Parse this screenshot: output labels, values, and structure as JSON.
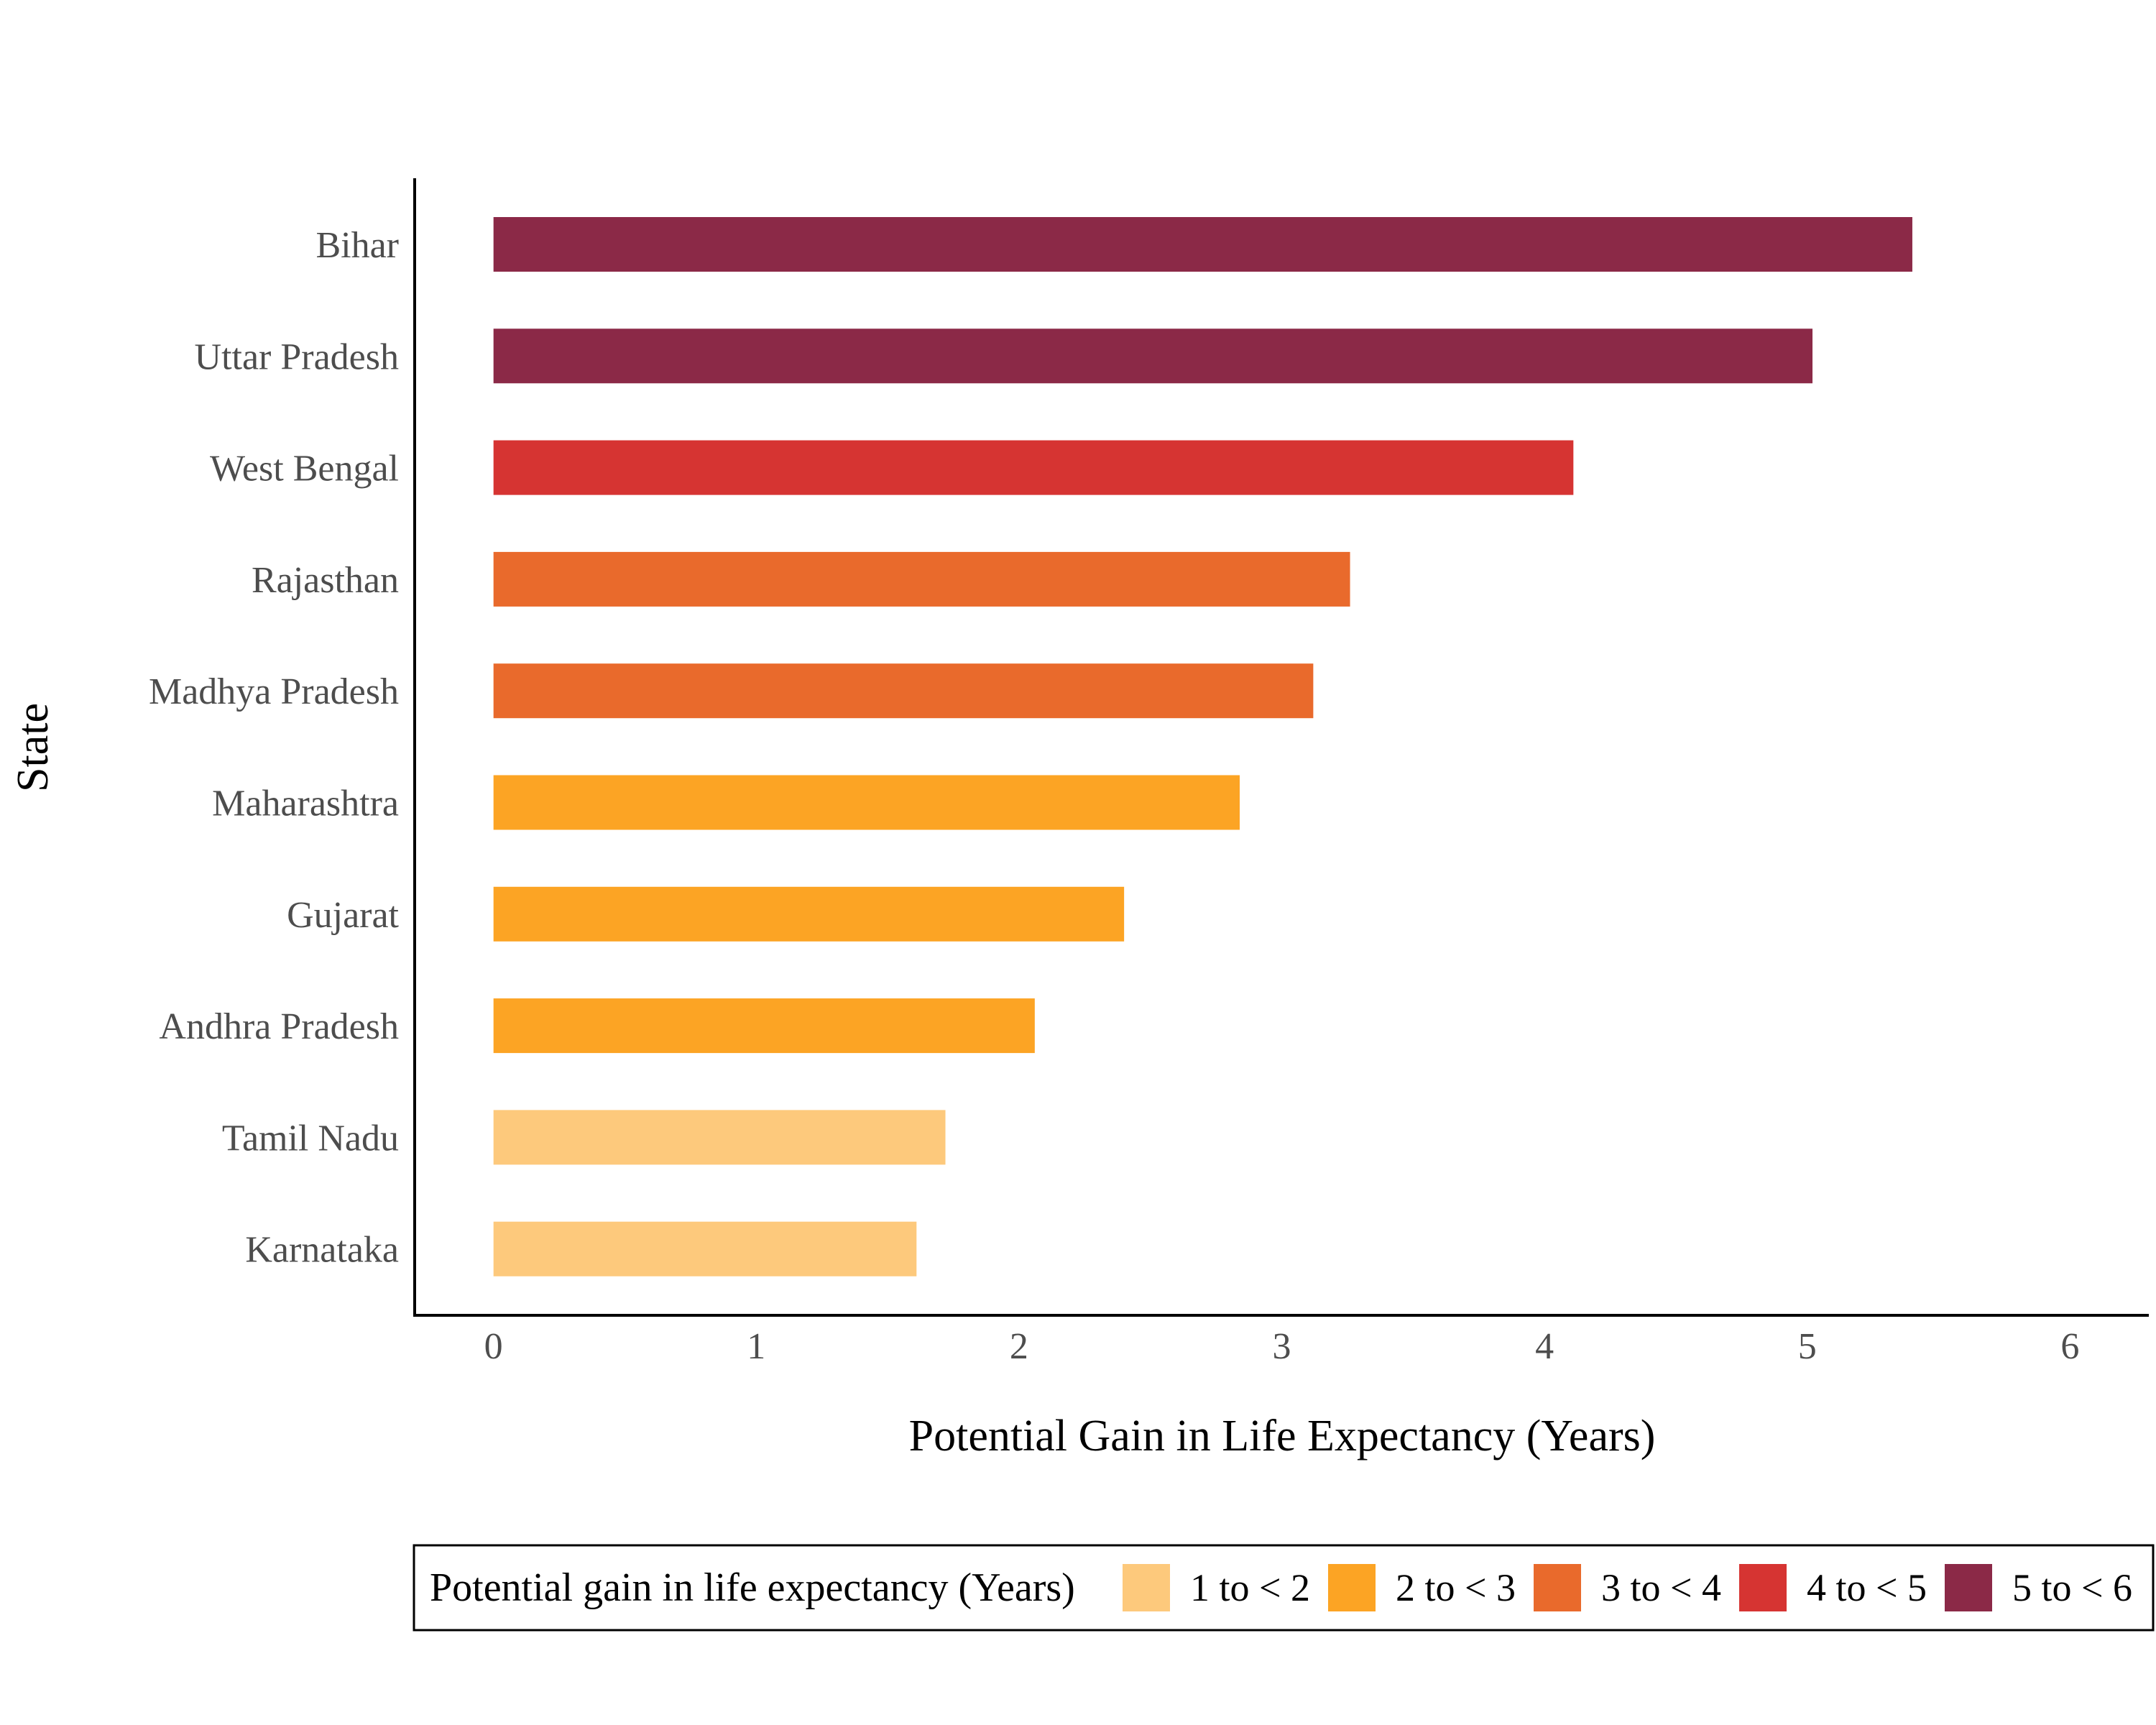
{
  "chart_data": {
    "type": "bar",
    "orientation": "horizontal",
    "xlabel": "Potential Gain in Life Expectancy (Years)",
    "ylabel": "State",
    "xlim": [
      -0.3,
      6.3
    ],
    "xticks": [
      0,
      1,
      2,
      3,
      4,
      5,
      6
    ],
    "grid": false,
    "legend_position": "bottom",
    "categories": [
      "Bihar",
      "Uttar Pradesh",
      "West Bengal",
      "Rajasthan",
      "Madhya Pradesh",
      "Maharashtra",
      "Gujarat",
      "Andhra Pradesh",
      "Tamil Nadu",
      "Karnataka"
    ],
    "values": [
      5.4,
      5.02,
      4.11,
      3.26,
      3.12,
      2.84,
      2.4,
      2.06,
      1.72,
      1.61
    ],
    "bins": [
      "5 to < 6",
      "5 to < 6",
      "4 to < 5",
      "3 to < 4",
      "3 to < 4",
      "2 to < 3",
      "2 to < 3",
      "2 to < 3",
      "1 to < 2",
      "1 to < 2"
    ],
    "legend": {
      "title": "Potential gain in life expectancy (Years)",
      "items": [
        {
          "label": "1 to < 2",
          "color": "#FDC97C"
        },
        {
          "label": "2 to < 3",
          "color": "#FCA424"
        },
        {
          "label": "3 to < 4",
          "color": "#E96A2C"
        },
        {
          "label": "4 to < 5",
          "color": "#D63432"
        },
        {
          "label": "5 to < 6",
          "color": "#8B2947"
        }
      ]
    }
  }
}
